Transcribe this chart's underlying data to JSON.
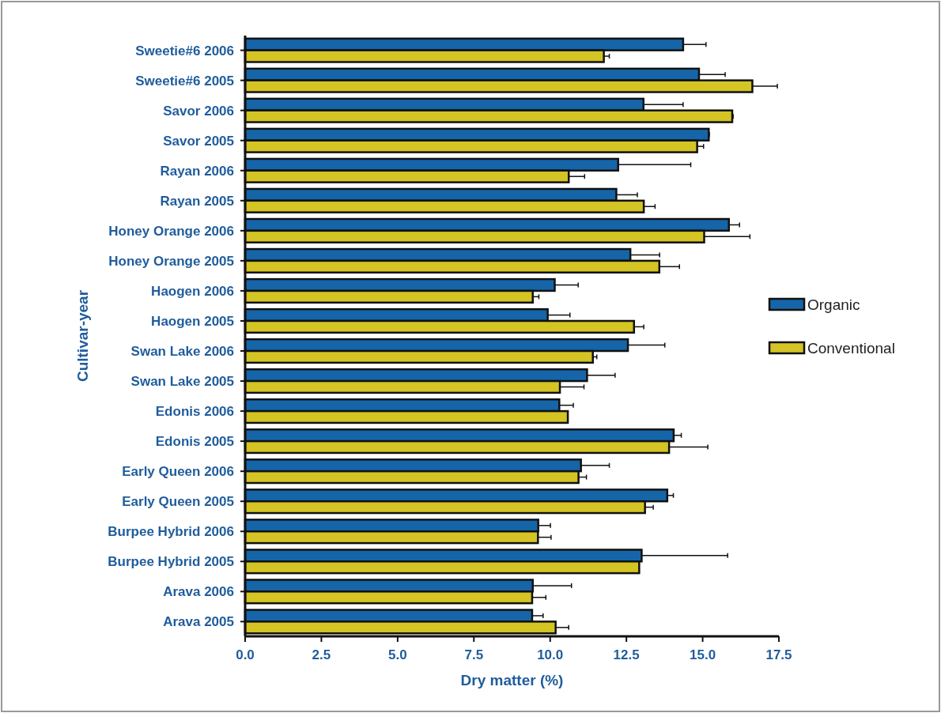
{
  "chart_data": {
    "type": "bar",
    "orientation": "horizontal",
    "xlabel": "Dry matter (%)",
    "ylabel": "Cultivar-year",
    "categories": [
      "Sweetie#6 2006",
      "Sweetie#6 2005",
      "Savor 2006",
      "Savor 2005",
      "Rayan 2006",
      "Rayan 2005",
      "Honey Orange 2006",
      "Honey Orange 2005",
      "Haogen 2006",
      "Haogen 2005",
      "Swan Lake 2006",
      "Swan Lake 2005",
      "Edonis 2006",
      "Edonis 2005",
      "Early Queen 2006",
      "Early Queen 2005",
      "Burpee Hybrid 2006",
      "Burpee Hybrid 2005",
      "Arava 2006",
      "Arava 2005"
    ],
    "series": [
      {
        "name": "Organic",
        "color": "#1565a8",
        "values": [
          14.36,
          14.88,
          13.06,
          15.2,
          12.23,
          12.17,
          15.86,
          12.63,
          10.15,
          9.92,
          12.55,
          11.21,
          10.3,
          14.05,
          11.01,
          13.84,
          9.61,
          13.0,
          9.43,
          9.41
        ],
        "errors": [
          [
            14.36,
            15.11
          ],
          [
            14.88,
            15.74
          ],
          [
            13.06,
            14.36
          ],
          [
            15.2,
            15.22
          ],
          [
            12.23,
            14.61
          ],
          [
            12.17,
            12.86
          ],
          [
            15.86,
            16.21
          ],
          [
            12.63,
            13.59
          ],
          [
            10.15,
            10.92
          ],
          [
            9.92,
            10.65
          ],
          [
            12.55,
            13.76
          ],
          [
            11.21,
            12.13
          ],
          [
            10.3,
            10.76
          ],
          [
            14.05,
            14.3
          ],
          [
            11.01,
            11.94
          ],
          [
            13.84,
            14.04
          ],
          [
            9.61,
            10.01
          ],
          [
            13.0,
            15.82
          ],
          [
            9.43,
            10.7
          ],
          [
            9.41,
            9.77
          ]
        ]
      },
      {
        "name": "Conventional",
        "color": "#d4c424",
        "values": [
          11.76,
          16.63,
          15.97,
          14.82,
          10.61,
          13.07,
          15.05,
          13.58,
          9.43,
          12.75,
          11.4,
          10.32,
          10.58,
          13.9,
          10.93,
          13.11,
          9.6,
          12.92,
          9.41,
          10.18
        ],
        "errors": [
          [
            11.76,
            11.94
          ],
          [
            16.63,
            17.45
          ],
          [
            15.97,
            16.0
          ],
          [
            14.82,
            15.03
          ],
          [
            10.61,
            11.13
          ],
          [
            13.07,
            13.44
          ],
          [
            15.05,
            16.55
          ],
          [
            13.58,
            14.24
          ],
          [
            9.43,
            9.63
          ],
          [
            12.75,
            13.07
          ],
          [
            11.4,
            11.53
          ],
          [
            10.32,
            11.11
          ],
          null,
          [
            13.9,
            15.17
          ],
          [
            10.93,
            11.19
          ],
          [
            13.11,
            13.38
          ],
          [
            9.6,
            10.03
          ],
          null,
          [
            9.41,
            9.86
          ],
          [
            10.18,
            10.61
          ]
        ]
      }
    ],
    "xlim": [
      0,
      17.5
    ],
    "xticks": [
      {
        "value": 0,
        "label": "0.0"
      },
      2.5,
      {
        "value": 5,
        "label": "5.0"
      },
      7.5,
      {
        "value": 10,
        "label": "10.0"
      },
      12.5,
      {
        "value": 15,
        "label": "15.0"
      },
      17.5
    ],
    "legend": "right",
    "grid": false
  }
}
